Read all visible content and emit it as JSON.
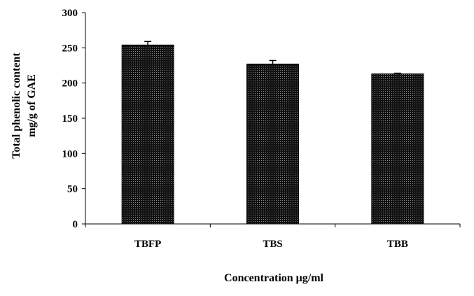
{
  "chart_data": {
    "type": "bar",
    "categories": [
      "TBFP",
      "TBS",
      "TBB"
    ],
    "series": [
      {
        "values": [
          254,
          227,
          213
        ],
        "errors": [
          5,
          5,
          1
        ]
      }
    ],
    "ylabel_line1": "Total phenolic content",
    "ylabel_line2": "mg/g of GAE",
    "xlabel": "Concentration μg/ml",
    "ylim": [
      0,
      300
    ],
    "yticks": [
      0,
      50,
      100,
      150,
      200,
      250,
      300
    ],
    "grid": false,
    "legend": "none",
    "bar_color": "#1a1a1a",
    "bar_pattern": "dotted"
  }
}
